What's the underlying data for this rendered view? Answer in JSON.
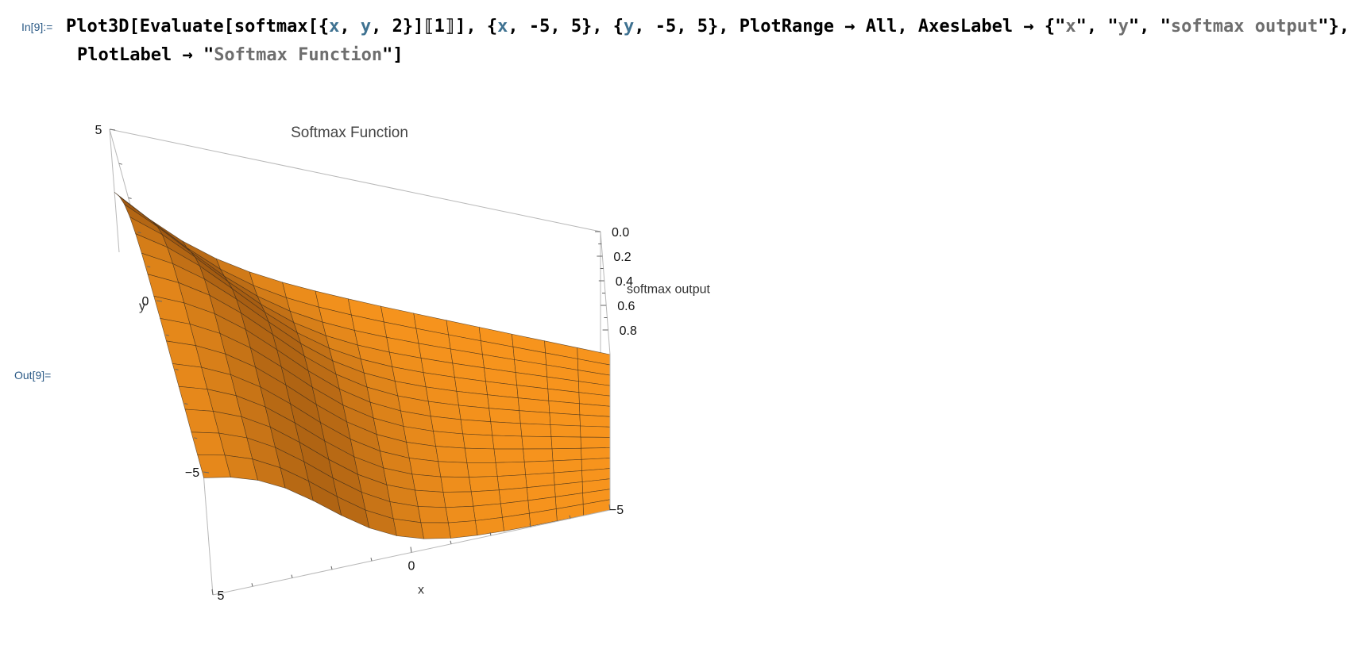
{
  "notebook": {
    "input_label": "In[9]:=",
    "output_label": "Out[9]=",
    "code": {
      "line1_tokens": [
        {
          "t": "Plot3D[Evaluate[softmax[{",
          "k": "plain"
        },
        {
          "t": "x",
          "k": "var"
        },
        {
          "t": ", ",
          "k": "plain"
        },
        {
          "t": "y",
          "k": "var"
        },
        {
          "t": ", 2}]⟦1⟧], {",
          "k": "plain"
        },
        {
          "t": "x",
          "k": "var"
        },
        {
          "t": ", -5, 5}, {",
          "k": "plain"
        },
        {
          "t": "y",
          "k": "var"
        },
        {
          "t": ", -5, 5}, PlotRange → All, AxesLabel → {\"",
          "k": "plain"
        },
        {
          "t": "x",
          "k": "str"
        },
        {
          "t": "\", \"",
          "k": "plain"
        },
        {
          "t": "y",
          "k": "str"
        },
        {
          "t": "\", \"",
          "k": "plain"
        },
        {
          "t": "softmax output",
          "k": "str"
        },
        {
          "t": "\"},",
          "k": "plain"
        }
      ],
      "line2_tokens": [
        {
          "t": "PlotLabel → \"",
          "k": "plain"
        },
        {
          "t": "Softmax Function",
          "k": "str"
        },
        {
          "t": "\"]",
          "k": "plain"
        }
      ]
    }
  },
  "chart_data": {
    "type": "surface",
    "title": "Softmax Function",
    "xlabel": "x",
    "ylabel": "y",
    "zlabel": "softmax output",
    "xlim": [
      -5,
      5
    ],
    "ylim": [
      -5,
      5
    ],
    "zlim": [
      0,
      1
    ],
    "x_ticks": [
      "-5",
      "0",
      "5"
    ],
    "y_ticks": [
      "-5",
      "0",
      "5"
    ],
    "z_ticks": [
      "0.0",
      "0.2",
      "0.4",
      "0.6",
      "0.8"
    ],
    "function": "softmax({x, y, 2})[1]",
    "mesh_divisions": 15,
    "colors": {
      "surface": "#f7941d",
      "surface_dark": "#8a4a0e",
      "mesh": "#3a2a18",
      "box": "#b8b8b8"
    }
  }
}
